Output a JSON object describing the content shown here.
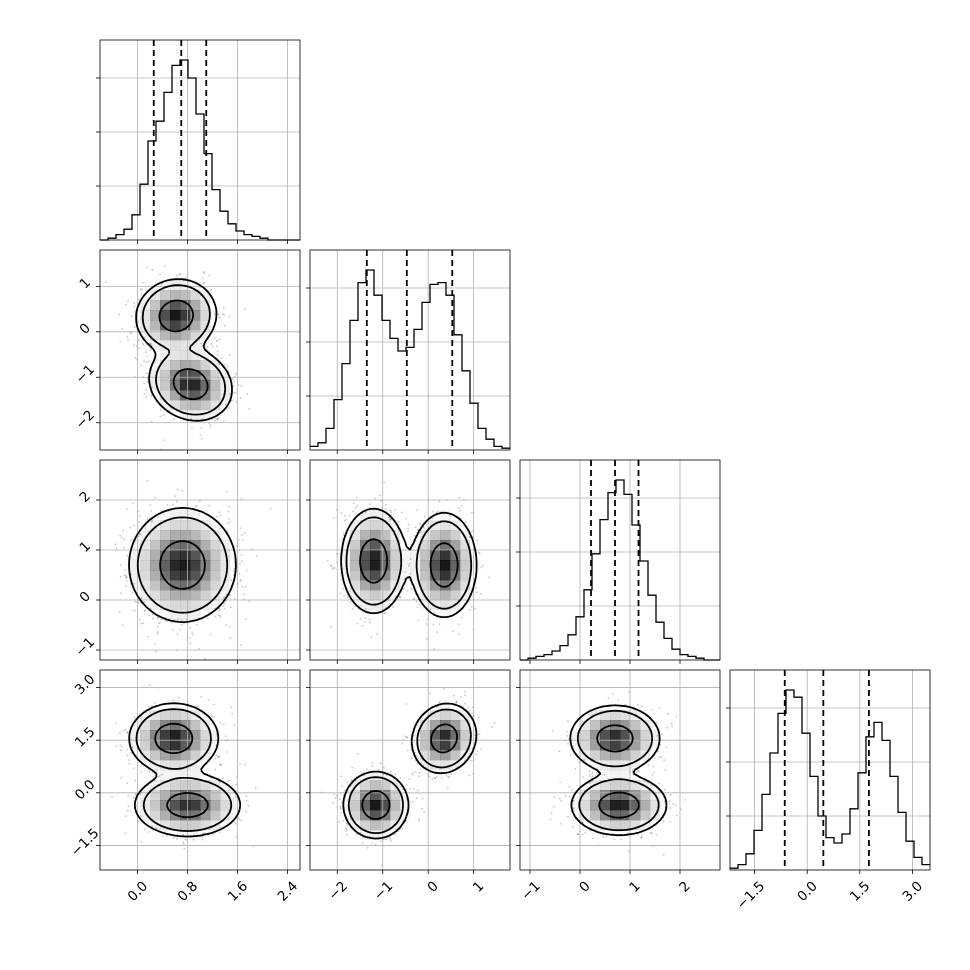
{
  "chart_data": {
    "type": "corner",
    "title": "",
    "parameters": [
      {
        "index": 0,
        "range": [
          -0.6,
          2.6
        ],
        "ticks": [
          0.0,
          0.8,
          1.6,
          2.4
        ],
        "tick_labels": [
          "0.0",
          "0.8",
          "1.6",
          "2.4"
        ],
        "quantiles": [
          0.26,
          0.7,
          1.1
        ],
        "hist_bin_start": -0.6,
        "hist_bin_width": 0.128,
        "hist_counts": [
          0,
          1,
          3,
          6,
          14,
          31,
          55,
          66,
          82,
          97,
          100,
          90,
          70,
          48,
          28,
          16,
          9,
          5,
          3,
          2,
          1,
          0,
          0,
          0,
          0
        ]
      },
      {
        "index": 1,
        "range": [
          -2.6,
          1.8
        ],
        "ticks": [
          -2,
          -1,
          0,
          1
        ],
        "tick_labels": [
          "−2",
          "−1",
          "0",
          "1"
        ],
        "quantiles": [
          -1.35,
          -0.47,
          0.53
        ],
        "hist_bin_start": -2.6,
        "hist_bin_width": 0.176,
        "hist_counts": [
          2,
          4,
          12,
          28,
          48,
          72,
          93,
          100,
          86,
          72,
          62,
          55,
          57,
          67,
          82,
          92,
          93,
          86,
          64,
          44,
          26,
          12,
          6,
          2,
          1
        ]
      },
      {
        "index": 2,
        "range": [
          -1.2,
          2.8
        ],
        "ticks": [
          -1,
          0,
          1,
          2
        ],
        "tick_labels": [
          "−1",
          "0",
          "1",
          "2"
        ],
        "quantiles": [
          0.22,
          0.7,
          1.17
        ],
        "hist_bin_start": -1.2,
        "hist_bin_width": 0.16,
        "hist_counts": [
          0,
          1,
          2,
          3,
          5,
          8,
          14,
          24,
          39,
          59,
          78,
          93,
          100,
          92,
          75,
          55,
          36,
          21,
          12,
          6,
          3,
          2,
          1,
          0,
          0
        ]
      },
      {
        "index": 3,
        "range": [
          -2.2,
          3.5
        ],
        "ticks": [
          -1.5,
          0.0,
          1.5,
          3.0
        ],
        "tick_labels": [
          "−1.5",
          "0.0",
          "1.5",
          "3.0"
        ],
        "quantiles": [
          -0.64,
          0.46,
          1.76
        ],
        "hist_bin_start": -2.2,
        "hist_bin_width": 0.228,
        "hist_counts": [
          1,
          3,
          9,
          22,
          42,
          65,
          87,
          100,
          96,
          76,
          52,
          30,
          18,
          15,
          20,
          34,
          54,
          74,
          82,
          72,
          52,
          32,
          16,
          7,
          3
        ]
      }
    ],
    "pairs": [
      {
        "x": 0,
        "y": 1,
        "clusters": [
          {
            "mx": 0.62,
            "my": 0.35,
            "sx": 0.27,
            "sy": 0.34,
            "rho": 0.05,
            "w": 0.5
          },
          {
            "mx": 0.85,
            "my": -1.15,
            "sx": 0.28,
            "sy": 0.34,
            "rho": -0.15,
            "w": 0.5
          }
        ]
      },
      {
        "x": 0,
        "y": 2,
        "clusters": [
          {
            "mx": 0.72,
            "my": 0.7,
            "sx": 0.36,
            "sy": 0.48,
            "rho": 0.0,
            "w": 1.0
          }
        ]
      },
      {
        "x": 1,
        "y": 2,
        "clusters": [
          {
            "mx": -1.2,
            "my": 0.78,
            "sx": 0.3,
            "sy": 0.44,
            "rho": 0.0,
            "w": 0.5
          },
          {
            "mx": 0.35,
            "my": 0.7,
            "sx": 0.3,
            "sy": 0.44,
            "rho": 0.0,
            "w": 0.5
          }
        ]
      },
      {
        "x": 0,
        "y": 3,
        "clusters": [
          {
            "mx": 0.58,
            "my": 1.55,
            "sx": 0.3,
            "sy": 0.42,
            "rho": 0.0,
            "w": 0.5
          },
          {
            "mx": 0.8,
            "my": -0.35,
            "sx": 0.36,
            "sy": 0.38,
            "rho": 0.0,
            "w": 0.5
          }
        ]
      },
      {
        "x": 1,
        "y": 3,
        "clusters": [
          {
            "mx": -1.15,
            "my": -0.35,
            "sx": 0.3,
            "sy": 0.4,
            "rho": 0.0,
            "w": 0.5
          },
          {
            "mx": 0.35,
            "my": 1.55,
            "sx": 0.3,
            "sy": 0.42,
            "rho": 0.1,
            "w": 0.5
          }
        ]
      },
      {
        "x": 2,
        "y": 3,
        "clusters": [
          {
            "mx": 0.7,
            "my": 1.55,
            "sx": 0.38,
            "sy": 0.4,
            "rho": 0.0,
            "w": 0.5
          },
          {
            "mx": 0.78,
            "my": -0.35,
            "sx": 0.4,
            "sy": 0.36,
            "rho": 0.0,
            "w": 0.5
          }
        ]
      }
    ],
    "grid": true,
    "contour_levels": [
      0.39,
      0.86,
      0.99
    ]
  }
}
